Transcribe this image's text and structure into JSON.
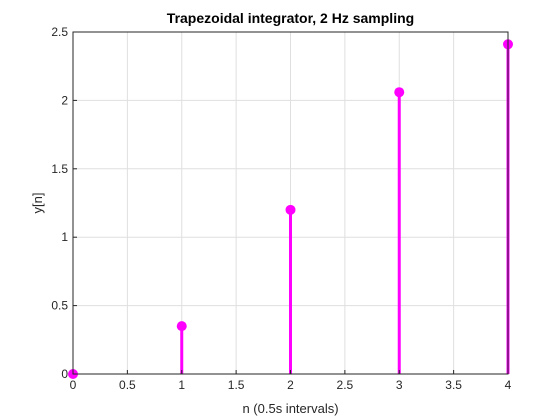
{
  "chart_data": {
    "type": "stem",
    "title": "Trapezoidal integrator, 2 Hz sampling",
    "xlabel": "n (0.5s intervals)",
    "ylabel": "y[n]",
    "x": [
      0,
      1,
      2,
      3,
      4
    ],
    "values": [
      0,
      0.35,
      1.2,
      2.06,
      2.41
    ],
    "xlim": [
      0,
      4
    ],
    "ylim": [
      0,
      2.5
    ],
    "xticks": [
      "0",
      "0.5",
      "1",
      "1.5",
      "2",
      "2.5",
      "3",
      "3.5",
      "4"
    ],
    "yticks": [
      "0",
      "0.5",
      "1",
      "1.5",
      "2",
      "2.5"
    ],
    "grid": true,
    "color": "#ff00ff"
  }
}
